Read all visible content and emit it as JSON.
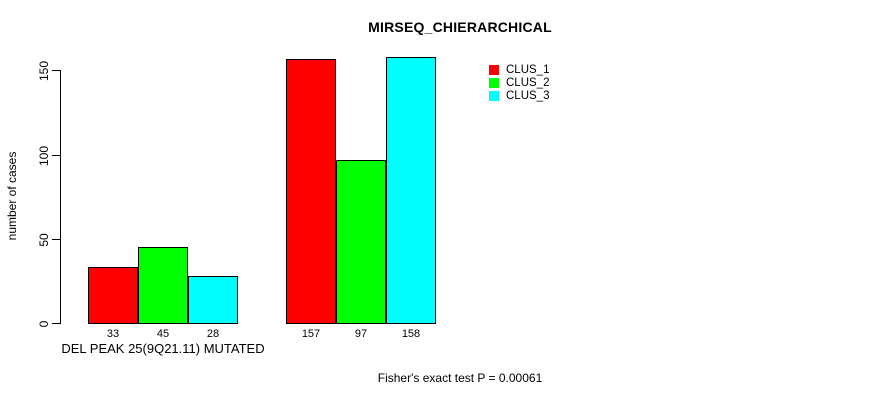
{
  "chart_data": {
    "type": "bar",
    "title": "MIRSEQ_CHIERARCHICAL",
    "ylabel": "number of cases",
    "xlabel": "",
    "categories": [
      "DEL PEAK 25(9Q21.11) MUTATED",
      ""
    ],
    "series": [
      {
        "name": "CLUS_1",
        "color": "#ff0000",
        "values": [
          33,
          157
        ]
      },
      {
        "name": "CLUS_2",
        "color": "#00ff00",
        "values": [
          45,
          97
        ]
      },
      {
        "name": "CLUS_3",
        "color": "#00ffff",
        "values": [
          28,
          158
        ]
      }
    ],
    "bar_value_labels": [
      [
        "33",
        "45",
        "28"
      ],
      [
        "157",
        "97",
        "158"
      ]
    ],
    "yticks": [
      0,
      50,
      100,
      150
    ],
    "ylim": [
      0,
      160
    ],
    "grid": false,
    "legend_position": "top-right",
    "annotation": "Fisher's exact test P = 0.00061"
  }
}
